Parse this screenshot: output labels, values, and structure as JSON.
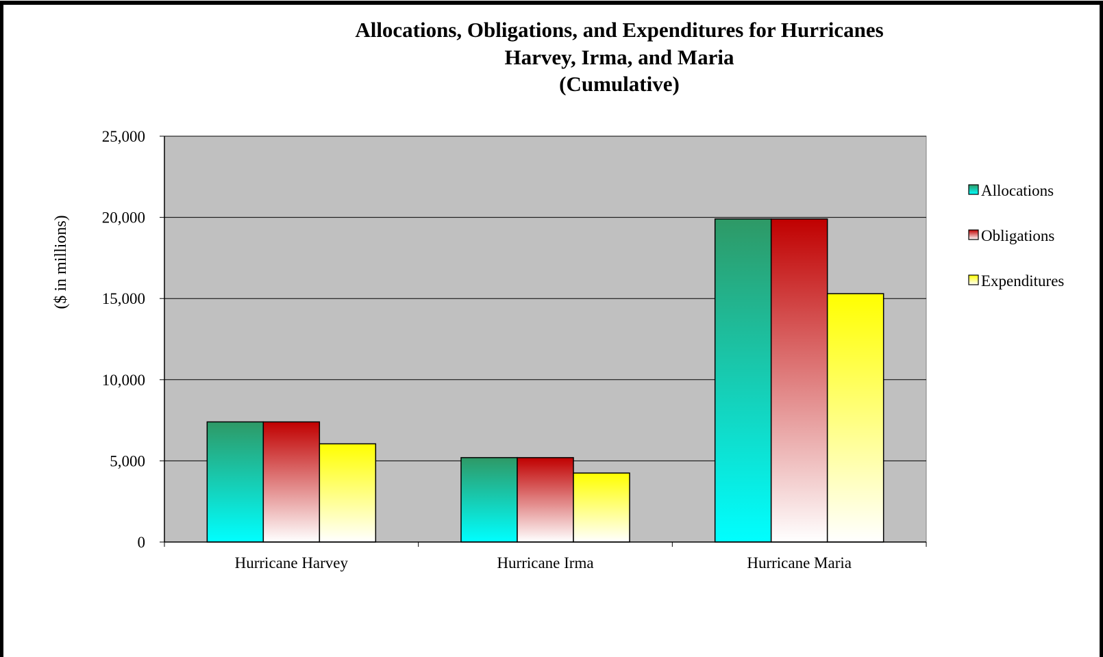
{
  "chart_data": {
    "type": "bar",
    "title": [
      "Allocations, Obligations, and Expenditures for Hurricanes",
      "Harvey, Irma, and Maria",
      "(Cumulative)"
    ],
    "ylabel": "($ in millions)",
    "xlabel": "",
    "ylim": [
      0,
      25000
    ],
    "yticks": [
      0,
      5000,
      10000,
      15000,
      20000,
      25000
    ],
    "ytick_labels": [
      "0",
      "5,000",
      "10,000",
      "15,000",
      "20,000",
      "25,000"
    ],
    "categories": [
      "Hurricane Harvey",
      "Hurricane Irma",
      "Hurricane Maria"
    ],
    "series": [
      {
        "name": "Allocations",
        "values": [
          7400,
          5200,
          19900
        ],
        "color_top": "#2e9966",
        "color_bottom": "#00ffff"
      },
      {
        "name": "Obligations",
        "values": [
          7400,
          5200,
          19900
        ],
        "color_top": "#c00000",
        "color_bottom": "#ffffff"
      },
      {
        "name": "Expenditures",
        "values": [
          6050,
          4250,
          15300
        ],
        "color_top": "#ffff00",
        "color_bottom": "#ffffff"
      }
    ],
    "grid": true,
    "legend_position": "right",
    "plot_background": "#c0c0c0"
  }
}
